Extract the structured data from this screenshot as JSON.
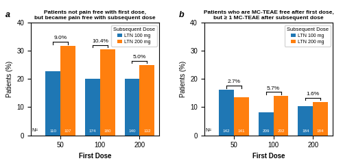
{
  "chart_data": [
    {
      "type": "bar",
      "title": "Patients not pain free with first dose,\nbut became pain free with subsequent dose",
      "panel_label": "a",
      "xlabel": "First Dose",
      "ylabel": "Patients (%)",
      "categories": [
        "50",
        "100",
        "200"
      ],
      "series": [
        {
          "name": "LTN 100 mg",
          "values": [
            22.7,
            20.1,
            20.0
          ],
          "n": [
            110,
            174,
            140
          ]
        },
        {
          "name": "LTN 200 mg",
          "values": [
            31.8,
            30.6,
            25.0
          ],
          "n": [
            107,
            180,
            132
          ]
        }
      ],
      "n_label": "N=",
      "bracket_labels": [
        "9.0%",
        "10.4%",
        "5.0%"
      ],
      "ylim": [
        0,
        40
      ],
      "yticks": [
        0,
        10,
        20,
        30,
        40
      ],
      "legend": "upper right",
      "legend_title": "Subsequent Dose"
    },
    {
      "type": "bar",
      "title": "Patients who are MC-TEAE free after first dose,\nbut ≥ 1 MC-TEAE after subsequent dose",
      "panel_label": "b",
      "xlabel": "First Dose",
      "ylabel": "Patients (%)",
      "categories": [
        "50",
        "100",
        "200"
      ],
      "series": [
        {
          "name": "LTN 100 mg",
          "values": [
            16.2,
            8.1,
            10.3
          ],
          "n": [
            142,
            209,
            184
          ]
        },
        {
          "name": "LTN 200 mg",
          "values": [
            13.5,
            13.9,
            11.9
          ],
          "n": [
            141,
            202,
            184
          ]
        }
      ],
      "n_label": "N=",
      "bracket_labels": [
        "2.7%",
        "5.7%",
        "1.6%"
      ],
      "ylim": [
        0,
        40
      ],
      "yticks": [
        0,
        10,
        20,
        30,
        40
      ],
      "legend": "upper right",
      "legend_title": "Subsequent Dose"
    }
  ]
}
